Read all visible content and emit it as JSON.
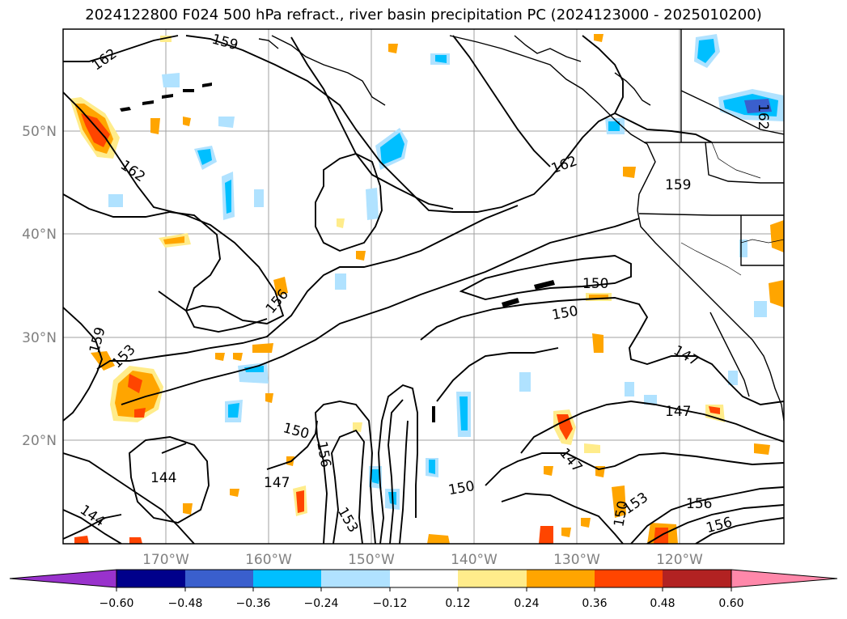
{
  "title": "2024122800 F024 500 hPa refract., river basin precipitation PC (2024123000 - 2025010200)",
  "map": {
    "lat_ticks": [
      "50°N",
      "40°N",
      "30°N",
      "20°N"
    ],
    "lon_ticks": [
      "170°W",
      "160°W",
      "150°W",
      "140°W",
      "130°W",
      "120°W"
    ],
    "tick_color": "#808080",
    "gridlines": true,
    "contour_labels": [
      "162",
      "159",
      "162",
      "162",
      "159",
      "159",
      "153",
      "156",
      "150",
      "150",
      "147",
      "147",
      "147",
      "144",
      "144",
      "150",
      "156",
      "153",
      "147",
      "150",
      "153",
      "150",
      "156",
      "156",
      "162"
    ]
  },
  "colorbar": {
    "colors": [
      "#9932CC",
      "#00008B",
      "#3A5FCD",
      "#00BFFF",
      "#B0E2FF",
      "#FFFFFF",
      "#FFEC8B",
      "#FFA500",
      "#FF4500",
      "#B22222",
      "#FF88AA"
    ],
    "labels": [
      "−0.60",
      "−0.48",
      "−0.36",
      "−0.24",
      "−0.12",
      "0.12",
      "0.24",
      "0.36",
      "0.48",
      "0.60"
    ]
  }
}
